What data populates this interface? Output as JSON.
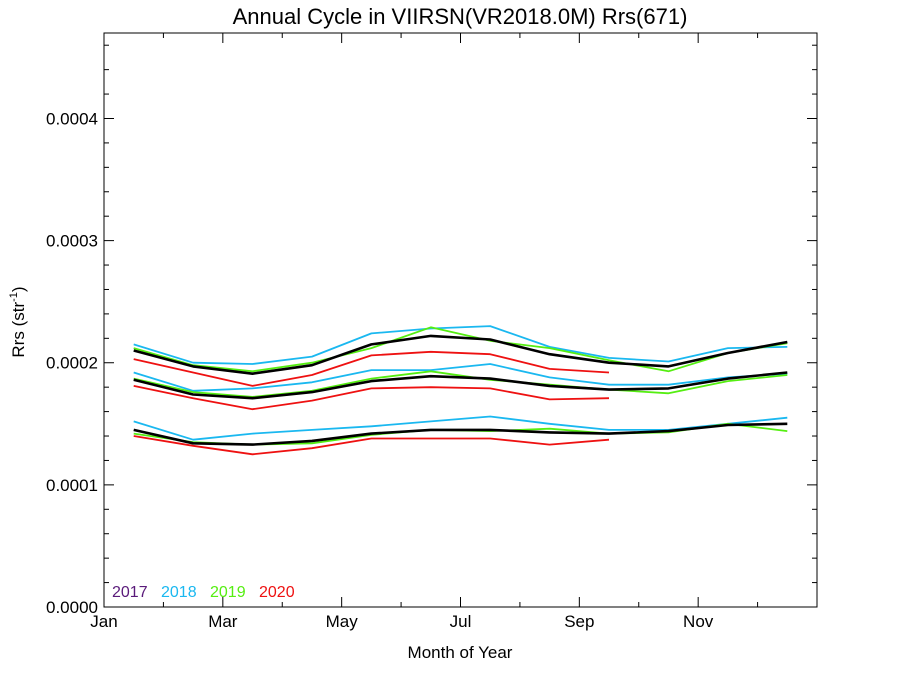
{
  "chart_data": {
    "type": "line",
    "title": "Annual Cycle in VIIRSN(VR2018.0M) Rrs(671)",
    "xlabel": "Month of Year",
    "ylabel_main": "Rrs (str",
    "ylabel_sup": "-1",
    "ylabel_close": ")",
    "xlim": [
      1,
      13
    ],
    "ylim": [
      0,
      0.00047
    ],
    "x_ticks": [
      {
        "x": 1,
        "label": "Jan"
      },
      {
        "x": 3,
        "label": "Mar"
      },
      {
        "x": 5,
        "label": "May"
      },
      {
        "x": 7,
        "label": "Jul"
      },
      {
        "x": 9,
        "label": "Sep"
      },
      {
        "x": 11,
        "label": "Nov"
      }
    ],
    "y_ticks": [
      {
        "y": 0.0,
        "label": "0.0000"
      },
      {
        "y": 0.0001,
        "label": "0.0001"
      },
      {
        "y": 0.0002,
        "label": "0.0002"
      },
      {
        "y": 0.0003,
        "label": "0.0003"
      },
      {
        "y": 0.0004,
        "label": "0.0004"
      }
    ],
    "legend": [
      {
        "label": "2017",
        "color": "#5a1a7a"
      },
      {
        "label": "2018",
        "color": "#1ab8f0"
      },
      {
        "label": "2019",
        "color": "#55ee11"
      },
      {
        "label": "2020",
        "color": "#ee1111"
      }
    ],
    "series": [
      {
        "color": "#1ab8f0",
        "x": [
          1.5,
          2.5,
          3.5,
          4.5,
          5.5,
          6.5,
          7.5,
          8.5,
          9.5,
          10.5,
          11.5,
          12.5
        ],
        "y": [
          0.000215,
          0.0002,
          0.000199,
          0.000205,
          0.000224,
          0.000228,
          0.00023,
          0.000213,
          0.000204,
          0.000201,
          0.000212,
          0.000213
        ]
      },
      {
        "color": "#1ab8f0",
        "x": [
          1.5,
          2.5,
          3.5,
          4.5,
          5.5,
          6.5,
          7.5,
          8.5,
          9.5,
          10.5,
          11.5,
          12.5
        ],
        "y": [
          0.000192,
          0.000177,
          0.000179,
          0.000184,
          0.000194,
          0.000194,
          0.000199,
          0.000188,
          0.000182,
          0.000182,
          0.000188,
          0.000191
        ]
      },
      {
        "color": "#1ab8f0",
        "x": [
          1.5,
          2.5,
          3.5,
          4.5,
          5.5,
          6.5,
          7.5,
          8.5,
          9.5,
          10.5,
          11.5,
          12.5
        ],
        "y": [
          0.000152,
          0.000137,
          0.000142,
          0.000145,
          0.000148,
          0.000152,
          0.000156,
          0.00015,
          0.000145,
          0.000145,
          0.00015,
          0.000155
        ]
      },
      {
        "color": "#55ee11",
        "x": [
          1.5,
          2.5,
          3.5,
          4.5,
          5.5,
          6.5,
          7.5,
          8.5,
          9.5,
          10.5,
          11.5,
          12.5
        ],
        "y": [
          0.000212,
          0.000198,
          0.000193,
          0.0002,
          0.000212,
          0.000229,
          0.000218,
          0.000212,
          0.000202,
          0.000193,
          0.000208,
          0.000216
        ]
      },
      {
        "color": "#55ee11",
        "x": [
          1.5,
          2.5,
          3.5,
          4.5,
          5.5,
          6.5,
          7.5,
          8.5,
          9.5,
          10.5,
          11.5,
          12.5
        ],
        "y": [
          0.000187,
          0.000176,
          0.000172,
          0.000177,
          0.000187,
          0.000193,
          0.000186,
          0.000182,
          0.000178,
          0.000175,
          0.000185,
          0.00019
        ]
      },
      {
        "color": "#55ee11",
        "x": [
          1.5,
          2.5,
          3.5,
          4.5,
          5.5,
          6.5,
          7.5,
          8.5,
          9.5,
          10.5,
          11.5,
          12.5
        ],
        "y": [
          0.000142,
          0.000135,
          0.000133,
          0.000134,
          0.000141,
          0.000145,
          0.000144,
          0.000146,
          0.000142,
          0.000143,
          0.00015,
          0.000144
        ]
      },
      {
        "color": "#ee1111",
        "x": [
          1.5,
          2.5,
          3.5,
          4.5,
          5.5,
          6.5,
          7.5,
          8.5,
          9.5
        ],
        "y": [
          0.000203,
          0.000192,
          0.000181,
          0.00019,
          0.000206,
          0.000209,
          0.000207,
          0.000195,
          0.000192
        ]
      },
      {
        "color": "#ee1111",
        "x": [
          1.5,
          2.5,
          3.5,
          4.5,
          5.5,
          6.5,
          7.5,
          8.5,
          9.5
        ],
        "y": [
          0.000181,
          0.000171,
          0.000162,
          0.000169,
          0.000179,
          0.00018,
          0.000179,
          0.00017,
          0.000171
        ]
      },
      {
        "color": "#ee1111",
        "x": [
          1.5,
          2.5,
          3.5,
          4.5,
          5.5,
          6.5,
          7.5,
          8.5,
          9.5
        ],
        "y": [
          0.00014,
          0.000132,
          0.000125,
          0.00013,
          0.000138,
          0.000138,
          0.000138,
          0.000133,
          0.000137
        ]
      },
      {
        "color": "#000000",
        "width": 2.6,
        "x": [
          1.5,
          2.5,
          3.5,
          4.5,
          5.5,
          6.5,
          7.5,
          8.5,
          9.5,
          10.5,
          11.5,
          12.5
        ],
        "y": [
          0.00021,
          0.000197,
          0.000191,
          0.000198,
          0.000215,
          0.000222,
          0.000219,
          0.000207,
          0.0002,
          0.000197,
          0.000208,
          0.000217
        ]
      },
      {
        "color": "#000000",
        "width": 2.6,
        "x": [
          1.5,
          2.5,
          3.5,
          4.5,
          5.5,
          6.5,
          7.5,
          8.5,
          9.5,
          10.5,
          11.5,
          12.5
        ],
        "y": [
          0.000186,
          0.000174,
          0.000171,
          0.000176,
          0.000185,
          0.000189,
          0.000187,
          0.000181,
          0.000178,
          0.000179,
          0.000187,
          0.000192
        ]
      },
      {
        "color": "#000000",
        "width": 2.6,
        "x": [
          1.5,
          2.5,
          3.5,
          4.5,
          5.5,
          6.5,
          7.5,
          8.5,
          9.5,
          10.5,
          11.5,
          12.5
        ],
        "y": [
          0.000145,
          0.000134,
          0.000133,
          0.000136,
          0.000142,
          0.000145,
          0.000145,
          0.000143,
          0.000142,
          0.000144,
          0.000149,
          0.00015
        ]
      }
    ]
  }
}
